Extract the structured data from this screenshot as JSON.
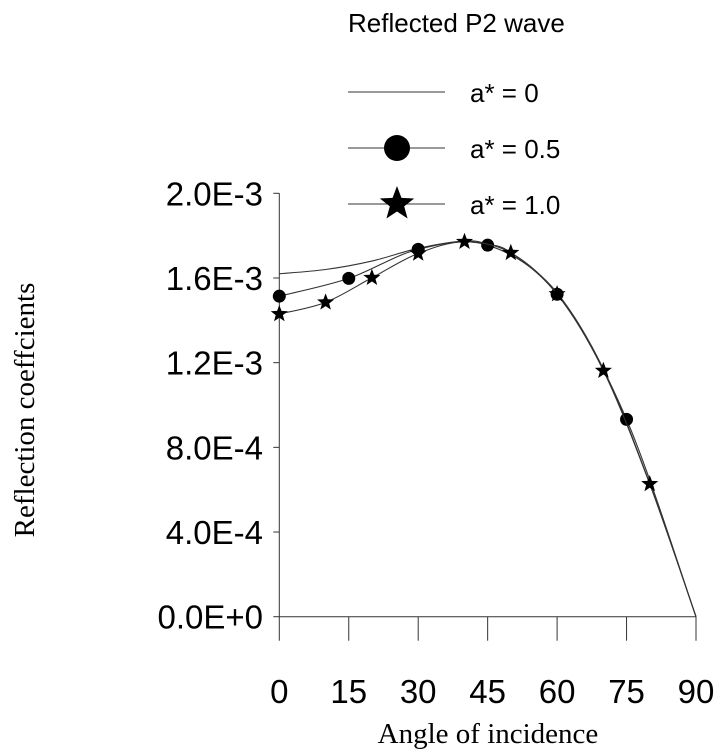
{
  "chart_data": {
    "type": "line",
    "title": "Reflected P2 wave",
    "xlabel": "Angle of incidence",
    "ylabel": "Reflection coeffcients",
    "xlim": [
      0,
      90
    ],
    "ylim": [
      0,
      0.002
    ],
    "x_ticks": [
      0,
      15,
      30,
      45,
      60,
      75,
      90
    ],
    "x_tick_labels": [
      "0",
      "15",
      "30",
      "45",
      "60",
      "75",
      "90"
    ],
    "y_ticks": [
      0,
      0.0004,
      0.0008,
      0.0012,
      0.0016,
      0.002
    ],
    "y_tick_labels": [
      "0.0E+0",
      "4.0E-4",
      "8.0E-4",
      "1.2E-3",
      "1.6E-3",
      "2.0E-3"
    ],
    "grid": false,
    "legend_placement": "top",
    "series": [
      {
        "name": "a* = 0",
        "marker": "none",
        "x": [
          0,
          10,
          20,
          30,
          40,
          45,
          50,
          60,
          70,
          80,
          90
        ],
        "y": [
          0.00162,
          0.00164,
          0.00168,
          0.00174,
          0.001775,
          0.00176,
          0.00172,
          0.00153,
          0.00117,
          0.00063,
          0
        ]
      },
      {
        "name": "a* = 0.5",
        "marker": "circle",
        "x": [
          0,
          15,
          30,
          45,
          60,
          75,
          90
        ],
        "y": [
          0.001514,
          0.001598,
          0.001735,
          0.001755,
          0.001523,
          0.000932,
          0
        ],
        "marker_x": [
          0,
          15,
          30,
          45,
          60,
          75
        ]
      },
      {
        "name": "a* = 1.0",
        "marker": "star",
        "x": [
          0,
          10,
          20,
          30,
          40,
          50,
          60,
          70,
          80,
          90
        ],
        "y": [
          0.00143,
          0.001485,
          0.001601,
          0.001716,
          0.001771,
          0.001719,
          0.001524,
          0.001162,
          0.000627,
          0
        ],
        "marker_x": [
          0,
          10,
          20,
          30,
          40,
          50,
          60,
          70,
          80
        ]
      }
    ]
  }
}
